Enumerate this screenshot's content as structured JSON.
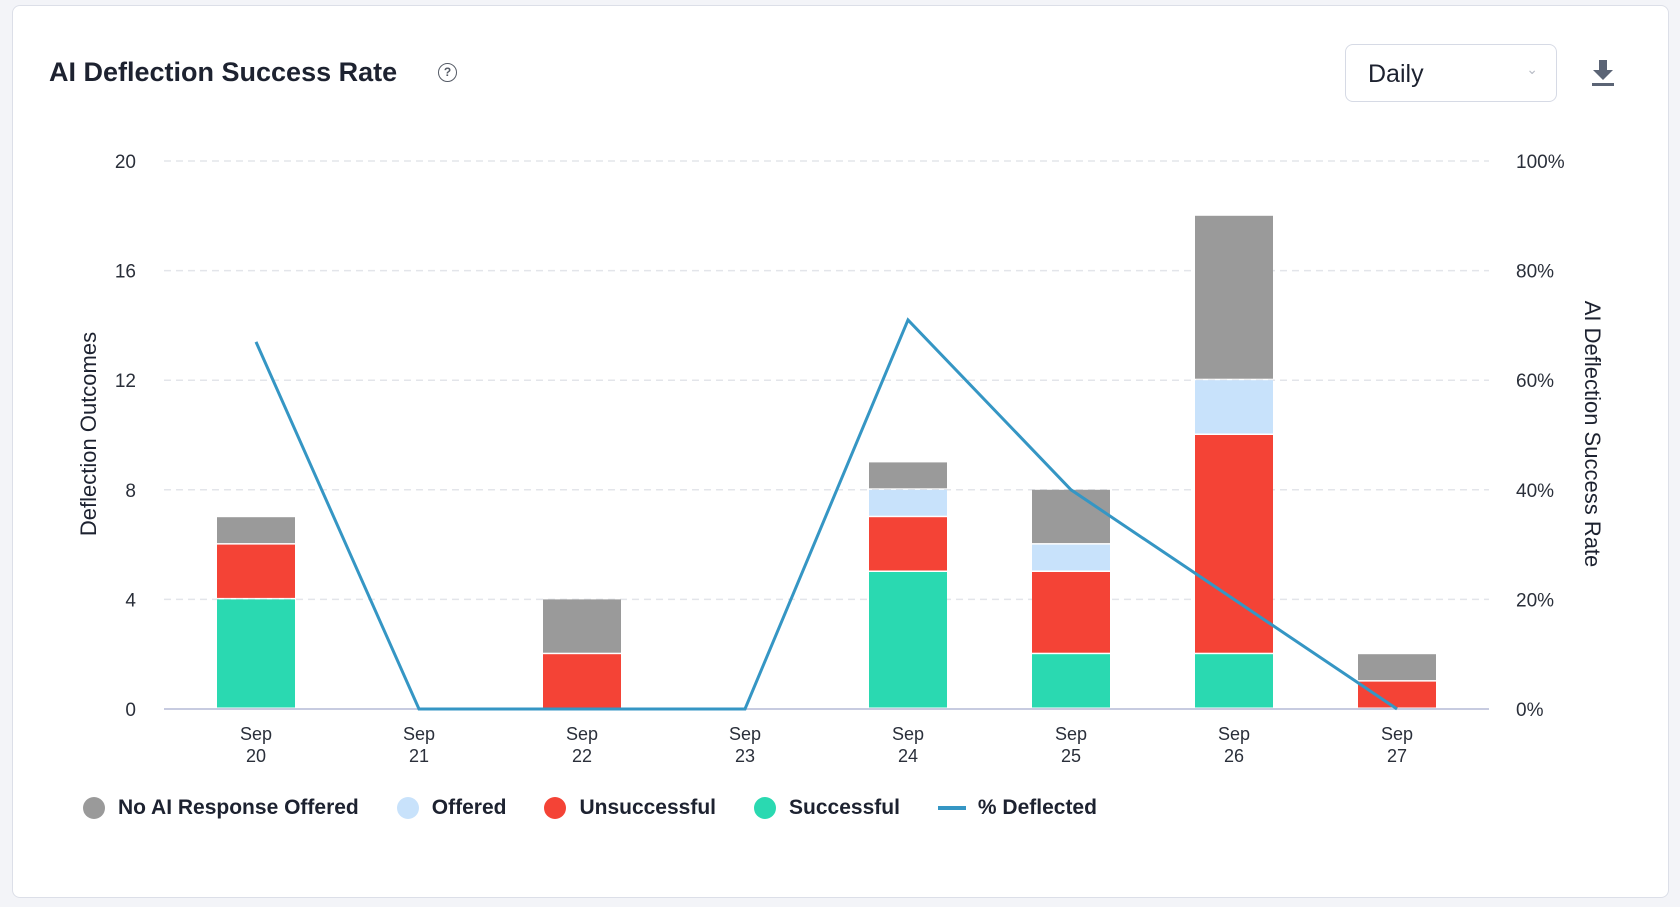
{
  "header": {
    "title": "AI Deflection Success Rate",
    "help_icon": "question-circle-icon"
  },
  "controls": {
    "period_select": "Daily",
    "download_icon": "download-icon"
  },
  "chart_data": {
    "type": "bar",
    "stacked": true,
    "categories": [
      [
        "Sep",
        "20"
      ],
      [
        "Sep",
        "21"
      ],
      [
        "Sep",
        "22"
      ],
      [
        "Sep",
        "23"
      ],
      [
        "Sep",
        "24"
      ],
      [
        "Sep",
        "25"
      ],
      [
        "Sep",
        "26"
      ],
      [
        "Sep",
        "27"
      ]
    ],
    "ylabel": "Deflection Outcomes",
    "y2label": "AI Deflection Success Rate",
    "ylim": [
      0,
      20
    ],
    "yticks": [
      "0",
      "4",
      "8",
      "12",
      "16",
      "20"
    ],
    "y2lim": [
      0,
      100
    ],
    "y2ticks": [
      "0%",
      "20%",
      "40%",
      "60%",
      "80%",
      "100%"
    ],
    "grid": true,
    "legend_position": "bottom-left",
    "series": [
      {
        "name": "Successful",
        "color": "#2ad9b1",
        "values": [
          4,
          0,
          0,
          0,
          5,
          2,
          2,
          0
        ]
      },
      {
        "name": "Unsuccessful",
        "color": "#f44336",
        "values": [
          2,
          0,
          2,
          0,
          2,
          3,
          8,
          1
        ]
      },
      {
        "name": "Offered",
        "color": "#c8e2fb",
        "values": [
          0,
          0,
          0,
          0,
          1,
          1,
          2,
          0
        ]
      },
      {
        "name": "No AI Response Offered",
        "color": "#9a9a9a",
        "values": [
          1,
          0,
          2,
          0,
          1,
          2,
          6,
          1
        ]
      }
    ],
    "line_series": {
      "name": "% Deflected",
      "color": "#3596c4",
      "axis": "right",
      "values": [
        67,
        0,
        0,
        0,
        71,
        40,
        20,
        0
      ]
    },
    "legend": [
      "No AI Response Offered",
      "Offered",
      "Unsuccessful",
      "Successful",
      "% Deflected"
    ]
  }
}
